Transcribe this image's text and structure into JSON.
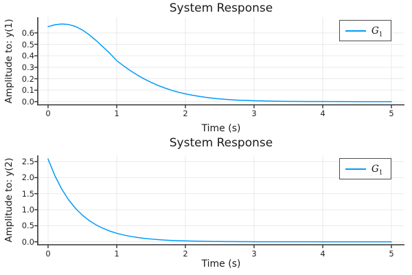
{
  "figure": {
    "background": "#ffffff",
    "line_color": "#009af9",
    "grid_color": "#e9e9e9",
    "axis_color": "#303030",
    "text_color": "#1a1a1a",
    "legend_border_color": "#4a4a4a"
  },
  "chart_data": [
    {
      "type": "line",
      "title": "System Response",
      "xlabel": "Time (s)",
      "ylabel": "Amplitude to: y(1)",
      "grid": true,
      "legend_position": "top-right",
      "legend": {
        "base": "G",
        "sub": "1"
      },
      "xlim": [
        -0.15,
        5.19
      ],
      "ylim": [
        -0.028,
        0.737
      ],
      "xticks": [
        0,
        1,
        2,
        3,
        4,
        5
      ],
      "xtick_labels": [
        "0",
        "1",
        "2",
        "3",
        "4",
        "5"
      ],
      "yticks": [
        0.0,
        0.1,
        0.2,
        0.3,
        0.4,
        0.5,
        0.6
      ],
      "ytick_labels": [
        "0.0",
        "0.1",
        "0.2",
        "0.3",
        "0.4",
        "0.5",
        "0.6"
      ],
      "series": [
        {
          "name": "G_1",
          "x": [
            0,
            0.1,
            0.2,
            0.3,
            0.4,
            0.5,
            0.6,
            0.7,
            0.8,
            0.9,
            1.0,
            1.1,
            1.2,
            1.3,
            1.4,
            1.5,
            1.6,
            1.7,
            1.8,
            1.9,
            2.0,
            2.1,
            2.2,
            2.3,
            2.4,
            2.5,
            2.6,
            2.7,
            2.8,
            2.9,
            3.0,
            3.2,
            3.4,
            3.6,
            3.8,
            4.0,
            4.5,
            5.0
          ],
          "y": [
            0.654,
            0.671,
            0.678,
            0.673,
            0.656,
            0.625,
            0.583,
            0.533,
            0.478,
            0.421,
            0.358,
            0.312,
            0.27,
            0.232,
            0.198,
            0.168,
            0.142,
            0.119,
            0.099,
            0.082,
            0.068,
            0.056,
            0.046,
            0.037,
            0.03,
            0.024,
            0.019,
            0.015,
            0.012,
            0.01,
            0.008,
            0.005,
            0.003,
            0.002,
            0.001,
            0.001,
            0.0,
            0.0
          ]
        }
      ]
    },
    {
      "type": "line",
      "title": "System Response",
      "xlabel": "Time (s)",
      "ylabel": "Amplitude to: y(2)",
      "grid": true,
      "legend_position": "top-right",
      "legend": {
        "base": "G",
        "sub": "1"
      },
      "xlim": [
        -0.15,
        5.19
      ],
      "ylim": [
        -0.092,
        2.694
      ],
      "xticks": [
        0,
        1,
        2,
        3,
        4,
        5
      ],
      "xtick_labels": [
        "0",
        "1",
        "2",
        "3",
        "4",
        "5"
      ],
      "yticks": [
        0.0,
        0.5,
        1.0,
        1.5,
        2.0,
        2.5
      ],
      "ytick_labels": [
        "0.0",
        "0.5",
        "1.0",
        "1.5",
        "2.0",
        "2.5"
      ],
      "series": [
        {
          "name": "G_1",
          "x": [
            0,
            0.1,
            0.2,
            0.3,
            0.4,
            0.5,
            0.6,
            0.7,
            0.8,
            0.9,
            1.0,
            1.1,
            1.2,
            1.3,
            1.4,
            1.5,
            1.6,
            1.7,
            1.8,
            1.9,
            2.0,
            2.1,
            2.2,
            2.3,
            2.4,
            2.5,
            2.6,
            2.7,
            2.8,
            2.9,
            3.0,
            3.2,
            3.4,
            3.6,
            3.8,
            4.0,
            4.5,
            5.0
          ],
          "y": [
            2.58,
            2.056,
            1.638,
            1.306,
            1.041,
            0.829,
            0.661,
            0.527,
            0.42,
            0.334,
            0.266,
            0.212,
            0.169,
            0.135,
            0.107,
            0.086,
            0.068,
            0.054,
            0.043,
            0.035,
            0.028,
            0.022,
            0.018,
            0.014,
            0.011,
            0.009,
            0.007,
            0.006,
            0.005,
            0.004,
            0.003,
            0.002,
            0.001,
            0.001,
            0.001,
            0.0,
            0.0,
            0.0
          ]
        }
      ]
    }
  ]
}
